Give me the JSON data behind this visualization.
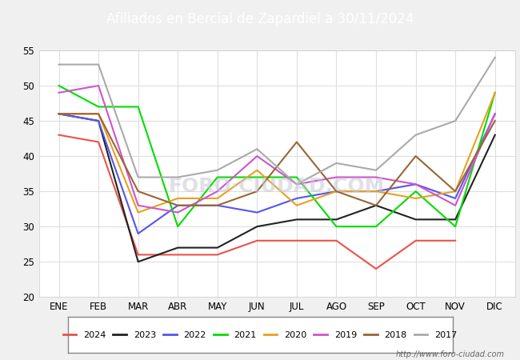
{
  "title": "Afiliados en Bercial de Zapardiel a 30/11/2024",
  "title_bg_color": "#5b8dd9",
  "title_text_color": "white",
  "ylim": [
    20,
    55
  ],
  "yticks": [
    20,
    25,
    30,
    35,
    40,
    45,
    50,
    55
  ],
  "months": [
    "ENE",
    "FEB",
    "MAR",
    "ABR",
    "MAY",
    "JUN",
    "JUL",
    "AGO",
    "SEP",
    "OCT",
    "NOV",
    "DIC"
  ],
  "series": {
    "2024": {
      "color": "#e8534a",
      "data": [
        43,
        42,
        26,
        26,
        26,
        28,
        28,
        28,
        24,
        28,
        28,
        null
      ]
    },
    "2023": {
      "color": "#222222",
      "data": [
        46,
        45,
        25,
        27,
        27,
        30,
        31,
        31,
        33,
        31,
        31,
        43
      ]
    },
    "2022": {
      "color": "#5555ee",
      "data": [
        46,
        45,
        29,
        33,
        33,
        32,
        34,
        35,
        35,
        36,
        34,
        46
      ]
    },
    "2021": {
      "color": "#00dd00",
      "data": [
        50,
        47,
        47,
        30,
        37,
        37,
        37,
        30,
        30,
        35,
        30,
        49
      ]
    },
    "2020": {
      "color": "#e8a020",
      "data": [
        46,
        46,
        32,
        34,
        34,
        38,
        33,
        35,
        35,
        34,
        35,
        49
      ]
    },
    "2019": {
      "color": "#cc55cc",
      "data": [
        49,
        50,
        33,
        32,
        35,
        40,
        36,
        37,
        37,
        36,
        33,
        46
      ]
    },
    "2018": {
      "color": "#996633",
      "data": [
        46,
        46,
        35,
        33,
        33,
        35,
        42,
        35,
        33,
        40,
        35,
        45
      ]
    },
    "2017": {
      "color": "#aaaaaa",
      "data": [
        53,
        53,
        37,
        37,
        38,
        41,
        36,
        39,
        38,
        43,
        45,
        54
      ]
    }
  },
  "legend_order": [
    "2024",
    "2023",
    "2022",
    "2021",
    "2020",
    "2019",
    "2018",
    "2017"
  ],
  "watermark_text": "http://www.foro-ciudad.com",
  "fig_bg_color": "#f0f0f0",
  "plot_bg_color": "#f0f0f0",
  "chart_bg_color": "#ffffff",
  "grid_color": "#dddddd"
}
